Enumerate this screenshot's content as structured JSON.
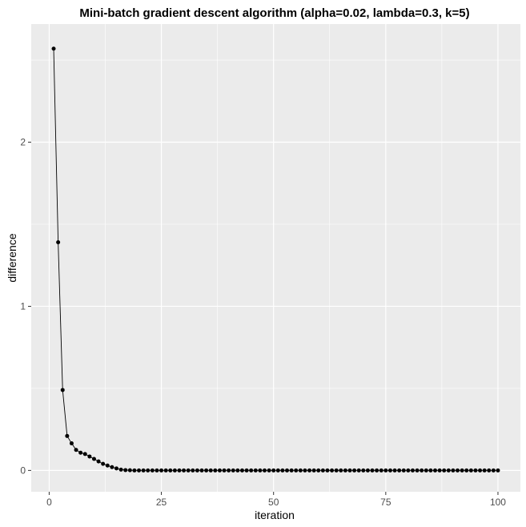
{
  "chart_data": {
    "type": "line",
    "title": "Mini-batch gradient descent algorithm (alpha=0.02, lambda=0.3, k=5)",
    "xlabel": "iteration",
    "ylabel": "difference",
    "xlim": [
      -4.0,
      105.0
    ],
    "ylim": [
      -0.13,
      2.72
    ],
    "x_ticks": [
      0,
      25,
      50,
      75,
      100
    ],
    "y_ticks": [
      0,
      1,
      2
    ],
    "x_tick_labels": [
      "0",
      "25",
      "50",
      "75",
      "100"
    ],
    "y_tick_labels": [
      "0",
      "1",
      "2"
    ],
    "x_minor_ticks": [
      12.5,
      37.5,
      62.5,
      87.5
    ],
    "y_minor_ticks": [
      0.5,
      1.5,
      2.5
    ],
    "grid": true,
    "colors": {
      "panel": "#ebebeb",
      "grid": "#ffffff",
      "line": "#000000",
      "point": "#000000"
    },
    "x": [
      1,
      2,
      3,
      4,
      5,
      6,
      7,
      8,
      9,
      10,
      11,
      12,
      13,
      14,
      15,
      16,
      17,
      18,
      19,
      20,
      21,
      22,
      23,
      24,
      25,
      26,
      27,
      28,
      29,
      30,
      31,
      32,
      33,
      34,
      35,
      36,
      37,
      38,
      39,
      40,
      41,
      42,
      43,
      44,
      45,
      46,
      47,
      48,
      49,
      50,
      51,
      52,
      53,
      54,
      55,
      56,
      57,
      58,
      59,
      60,
      61,
      62,
      63,
      64,
      65,
      66,
      67,
      68,
      69,
      70,
      71,
      72,
      73,
      74,
      75,
      76,
      77,
      78,
      79,
      80,
      81,
      82,
      83,
      84,
      85,
      86,
      87,
      88,
      89,
      90,
      91,
      92,
      93,
      94,
      95,
      96,
      97,
      98,
      99,
      100
    ],
    "y": [
      2.57,
      1.39,
      0.49,
      0.21,
      0.165,
      0.125,
      0.108,
      0.1,
      0.085,
      0.07,
      0.055,
      0.04,
      0.03,
      0.02,
      0.012,
      0.005,
      0.002,
      0.001,
      0,
      0,
      0,
      0,
      0,
      0,
      0,
      0,
      0,
      0,
      0,
      0,
      0,
      0,
      0,
      0,
      0,
      0,
      0,
      0,
      0,
      0,
      0,
      0,
      0,
      0,
      0,
      0,
      0,
      0,
      0,
      0,
      0,
      0,
      0,
      0,
      0,
      0,
      0,
      0,
      0,
      0,
      0,
      0,
      0,
      0,
      0,
      0,
      0,
      0,
      0,
      0,
      0,
      0,
      0,
      0,
      0,
      0,
      0,
      0,
      0,
      0,
      0,
      0,
      0,
      0,
      0,
      0,
      0,
      0,
      0,
      0,
      0,
      0,
      0,
      0,
      0,
      0,
      0,
      0,
      0,
      0
    ]
  }
}
